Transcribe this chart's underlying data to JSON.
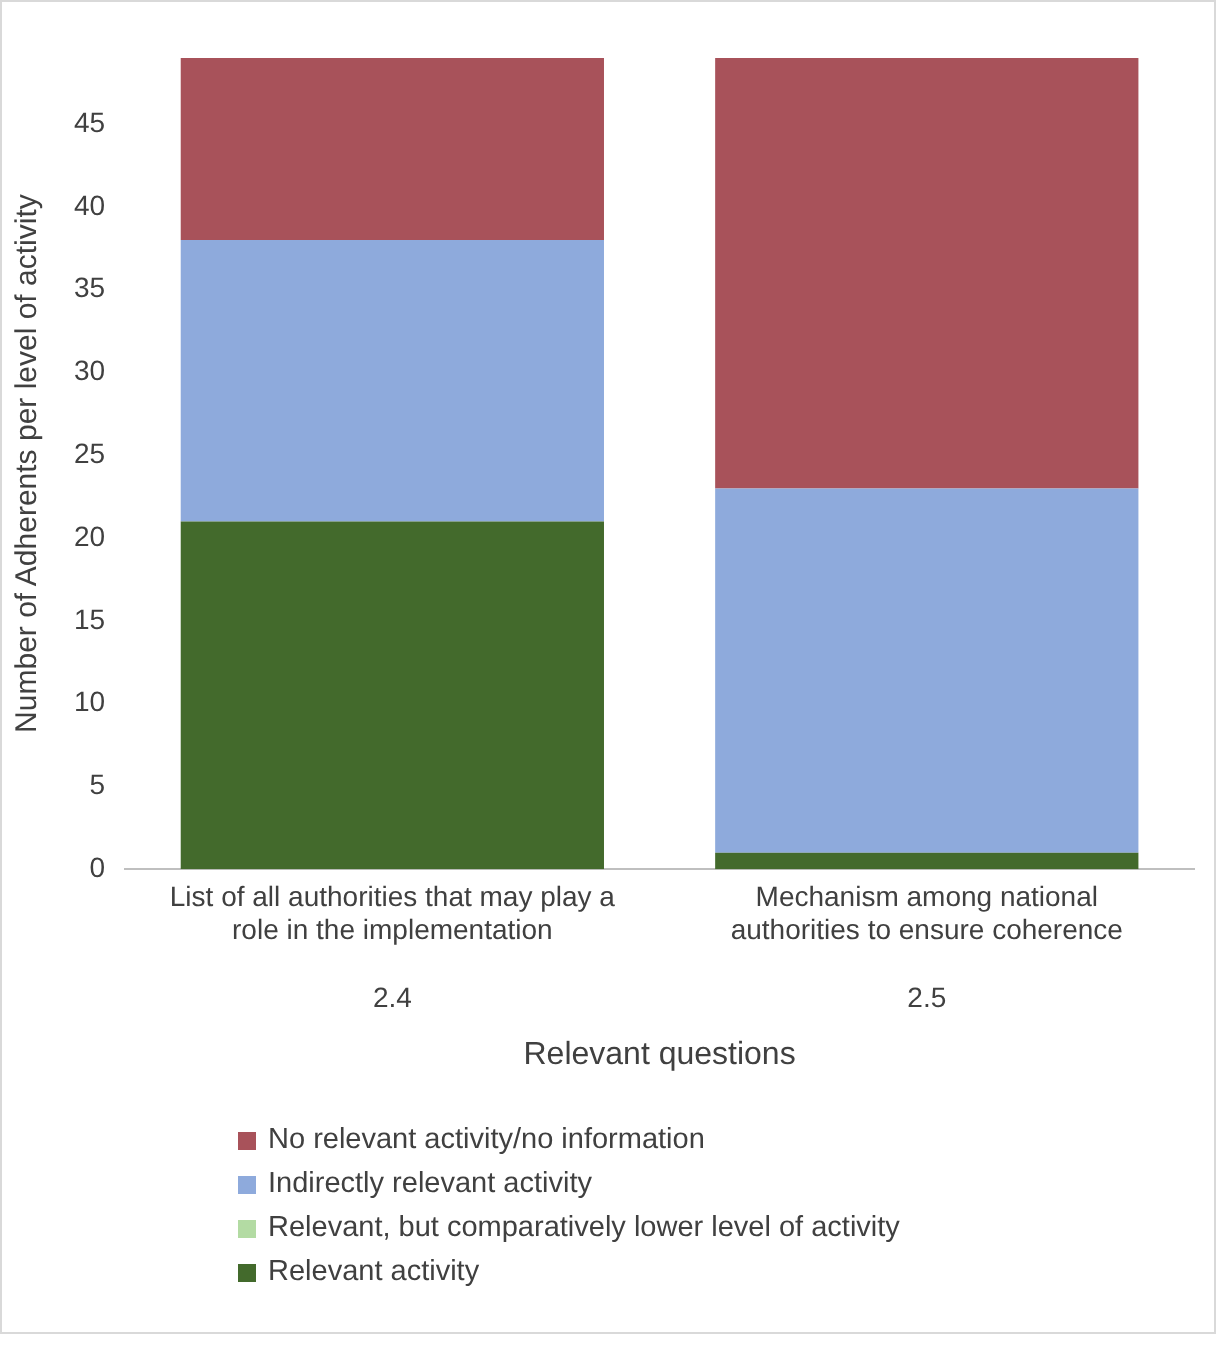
{
  "chart_data": {
    "type": "bar",
    "stacked": true,
    "ylabel": "Number of Adherents per level of activity",
    "xlabel": "Relevant questions",
    "categories": [
      "List of all authorities that may play a role in the implementation",
      "Mechanism among national authorities to ensure coherence"
    ],
    "annotations": [
      "2.4",
      "2.5"
    ],
    "series": [
      {
        "name": "Relevant activity",
        "color": "#436a2c",
        "values": [
          21,
          1
        ]
      },
      {
        "name": "Relevant, but comparatively lower level of activity",
        "color": "#b3dba3",
        "values": [
          0,
          0
        ]
      },
      {
        "name": "Indirectly relevant activity",
        "color": "#8eaadc",
        "values": [
          17,
          22
        ]
      },
      {
        "name": "No relevant activity/no information",
        "color": "#a8525a",
        "values": [
          11,
          26
        ]
      }
    ],
    "ylim": [
      0,
      49
    ],
    "yticks": [
      0,
      5,
      10,
      15,
      20,
      25,
      30,
      35,
      40,
      45
    ],
    "grid": false,
    "legend": "bottom"
  }
}
